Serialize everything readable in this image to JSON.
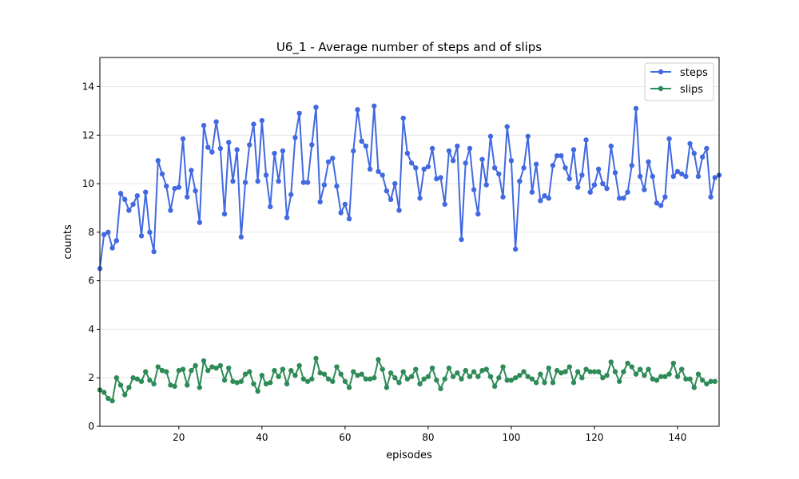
{
  "chart_data": {
    "type": "line",
    "title": "U6_1 - Average number of steps and of slips",
    "xlabel": "episodes",
    "ylabel": "counts",
    "xlim": [
      1,
      150
    ],
    "ylim": [
      0,
      15.2
    ],
    "xticks": [
      20,
      40,
      60,
      80,
      100,
      120,
      140
    ],
    "yticks": [
      0,
      2,
      4,
      6,
      8,
      10,
      12,
      14
    ],
    "grid": "horizontal",
    "legend_position": "top-right",
    "series": [
      {
        "name": "steps",
        "color": "#4169e1",
        "values": [
          6.5,
          7.9,
          8.0,
          7.35,
          7.65,
          9.6,
          9.35,
          8.9,
          9.15,
          9.5,
          7.85,
          9.65,
          8.0,
          7.2,
          10.95,
          10.4,
          9.9,
          8.9,
          9.8,
          9.85,
          11.85,
          9.45,
          10.55,
          9.7,
          8.4,
          12.4,
          11.5,
          11.3,
          12.55,
          11.45,
          8.75,
          11.7,
          10.1,
          11.4,
          7.8,
          10.05,
          11.6,
          12.45,
          10.1,
          12.6,
          10.35,
          9.05,
          11.25,
          10.1,
          11.35,
          8.6,
          9.55,
          11.9,
          12.9,
          10.05,
          10.05,
          11.6,
          13.15,
          9.25,
          9.95,
          10.9,
          11.05,
          9.9,
          8.8,
          9.15,
          8.55,
          11.35,
          13.05,
          11.75,
          11.55,
          10.6,
          13.2,
          10.5,
          10.35,
          9.7,
          9.35,
          10.0,
          8.9,
          12.7,
          11.25,
          10.85,
          10.65,
          9.4,
          10.6,
          10.7,
          11.45,
          10.2,
          10.25,
          9.15,
          11.35,
          10.95,
          11.55,
          7.7,
          10.85,
          11.45,
          9.75,
          8.75,
          11.0,
          9.95,
          11.95,
          10.65,
          10.4,
          9.45,
          12.35,
          10.95,
          7.3,
          10.1,
          10.65,
          11.95,
          9.65,
          10.8,
          9.3,
          9.5,
          9.4,
          10.75,
          11.15,
          11.15,
          10.65,
          10.2,
          11.4,
          9.85,
          10.35,
          11.8,
          9.65,
          9.95,
          10.6,
          10.0,
          9.8,
          11.55,
          10.45,
          9.4,
          9.4,
          9.65,
          10.75,
          13.1,
          10.3,
          9.75,
          10.9,
          10.3,
          9.2,
          9.1,
          9.45,
          11.85,
          10.3,
          10.5,
          10.4,
          10.3,
          11.65,
          11.25,
          10.3,
          11.1,
          11.45,
          9.45,
          10.25,
          10.35
        ]
      },
      {
        "name": "slips",
        "color": "#2e8b57",
        "values": [
          1.5,
          1.4,
          1.15,
          1.05,
          2.0,
          1.7,
          1.3,
          1.6,
          2.0,
          1.95,
          1.85,
          2.25,
          1.9,
          1.75,
          2.45,
          2.3,
          2.25,
          1.7,
          1.65,
          2.3,
          2.35,
          1.7,
          2.3,
          2.5,
          1.6,
          2.7,
          2.3,
          2.45,
          2.4,
          2.5,
          1.9,
          2.4,
          1.85,
          1.8,
          1.85,
          2.15,
          2.25,
          1.75,
          1.45,
          2.1,
          1.75,
          1.8,
          2.3,
          2.05,
          2.35,
          1.75,
          2.3,
          2.1,
          2.5,
          1.95,
          1.85,
          1.95,
          2.8,
          2.2,
          2.15,
          1.95,
          1.85,
          2.45,
          2.15,
          1.85,
          1.6,
          2.25,
          2.1,
          2.15,
          1.95,
          1.95,
          2.0,
          2.75,
          2.35,
          1.6,
          2.2,
          2.0,
          1.8,
          2.25,
          1.95,
          2.05,
          2.35,
          1.75,
          1.95,
          2.05,
          2.4,
          1.9,
          1.55,
          1.95,
          2.4,
          2.05,
          2.2,
          1.95,
          2.3,
          2.05,
          2.25,
          2.05,
          2.3,
          2.35,
          2.05,
          1.65,
          2.0,
          2.45,
          1.9,
          1.9,
          2.0,
          2.1,
          2.25,
          2.05,
          1.95,
          1.8,
          2.15,
          1.8,
          2.4,
          1.8,
          2.3,
          2.2,
          2.25,
          2.45,
          1.8,
          2.25,
          2.0,
          2.35,
          2.25,
          2.25,
          2.25,
          2.0,
          2.1,
          2.65,
          2.25,
          1.85,
          2.25,
          2.6,
          2.45,
          2.15,
          2.35,
          2.1,
          2.35,
          1.95,
          1.9,
          2.05,
          2.05,
          2.15,
          2.6,
          2.05,
          2.35,
          1.95,
          1.95,
          1.6,
          2.15,
          1.9,
          1.75,
          1.85,
          1.85
        ]
      }
    ]
  }
}
